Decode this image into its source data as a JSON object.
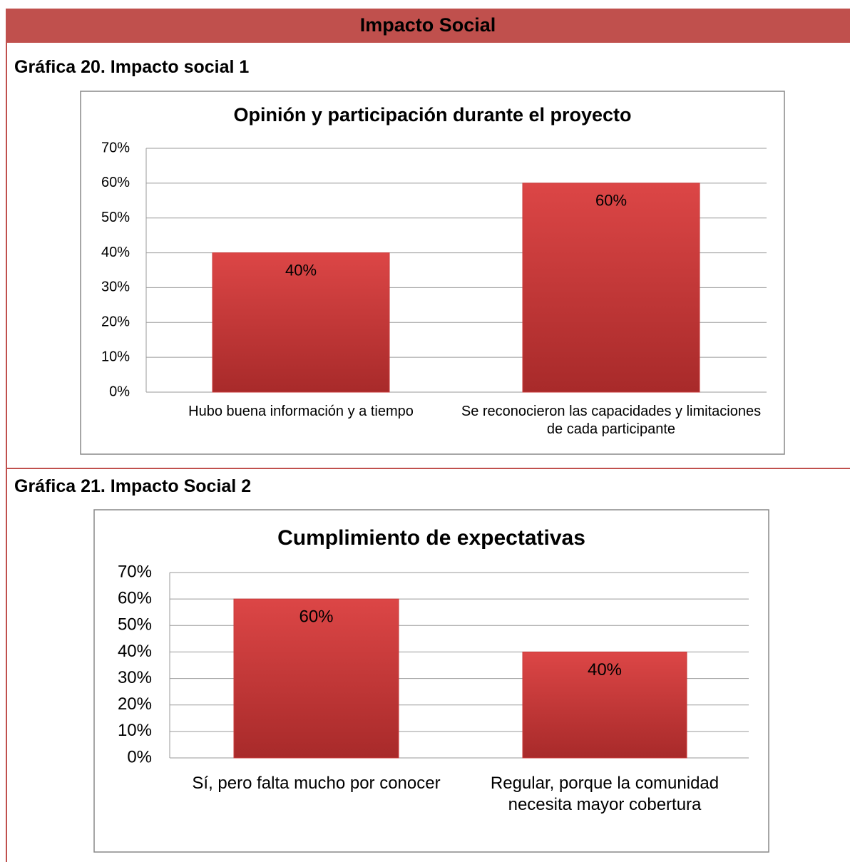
{
  "header": {
    "title": "Impacto Social"
  },
  "sections": [
    {
      "caption": "Gráfica 20. Impacto social 1"
    },
    {
      "caption": "Gráfica 21. Impacto Social 2"
    }
  ],
  "chart_data": [
    {
      "type": "bar",
      "title": "Opinión y participación durante el proyecto",
      "categories": [
        "Hubo buena información y a tiempo",
        "Se reconocieron las capacidades y limitaciones de cada participante"
      ],
      "values": [
        40,
        60
      ],
      "value_labels": [
        "40%",
        "60%"
      ],
      "color": "#c93a3a",
      "ylim": [
        0,
        70
      ],
      "yticks": [
        {
          "value": 0,
          "label": "0%"
        },
        {
          "value": 10,
          "label": "10%"
        },
        {
          "value": 20,
          "label": "20%"
        },
        {
          "value": 30,
          "label": "30%"
        },
        {
          "value": 40,
          "label": "40%"
        },
        {
          "value": 50,
          "label": "50%"
        },
        {
          "value": 60,
          "label": "60%"
        },
        {
          "value": 70,
          "label": "70%"
        }
      ],
      "grid": true
    },
    {
      "type": "bar",
      "title": "Cumplimiento de expectativas",
      "categories": [
        "Sí, pero falta mucho por conocer",
        "Regular, porque la comunidad necesita mayor cobertura"
      ],
      "values": [
        60,
        40
      ],
      "value_labels": [
        "60%",
        "40%"
      ],
      "color": "#c93a3a",
      "ylim": [
        0,
        70
      ],
      "yticks": [
        {
          "value": 0,
          "label": "0%"
        },
        {
          "value": 10,
          "label": "10%"
        },
        {
          "value": 20,
          "label": "20%"
        },
        {
          "value": 30,
          "label": "30%"
        },
        {
          "value": 40,
          "label": "40%"
        },
        {
          "value": 50,
          "label": "50%"
        },
        {
          "value": 60,
          "label": "60%"
        },
        {
          "value": 70,
          "label": "70%"
        }
      ],
      "grid": true
    }
  ]
}
